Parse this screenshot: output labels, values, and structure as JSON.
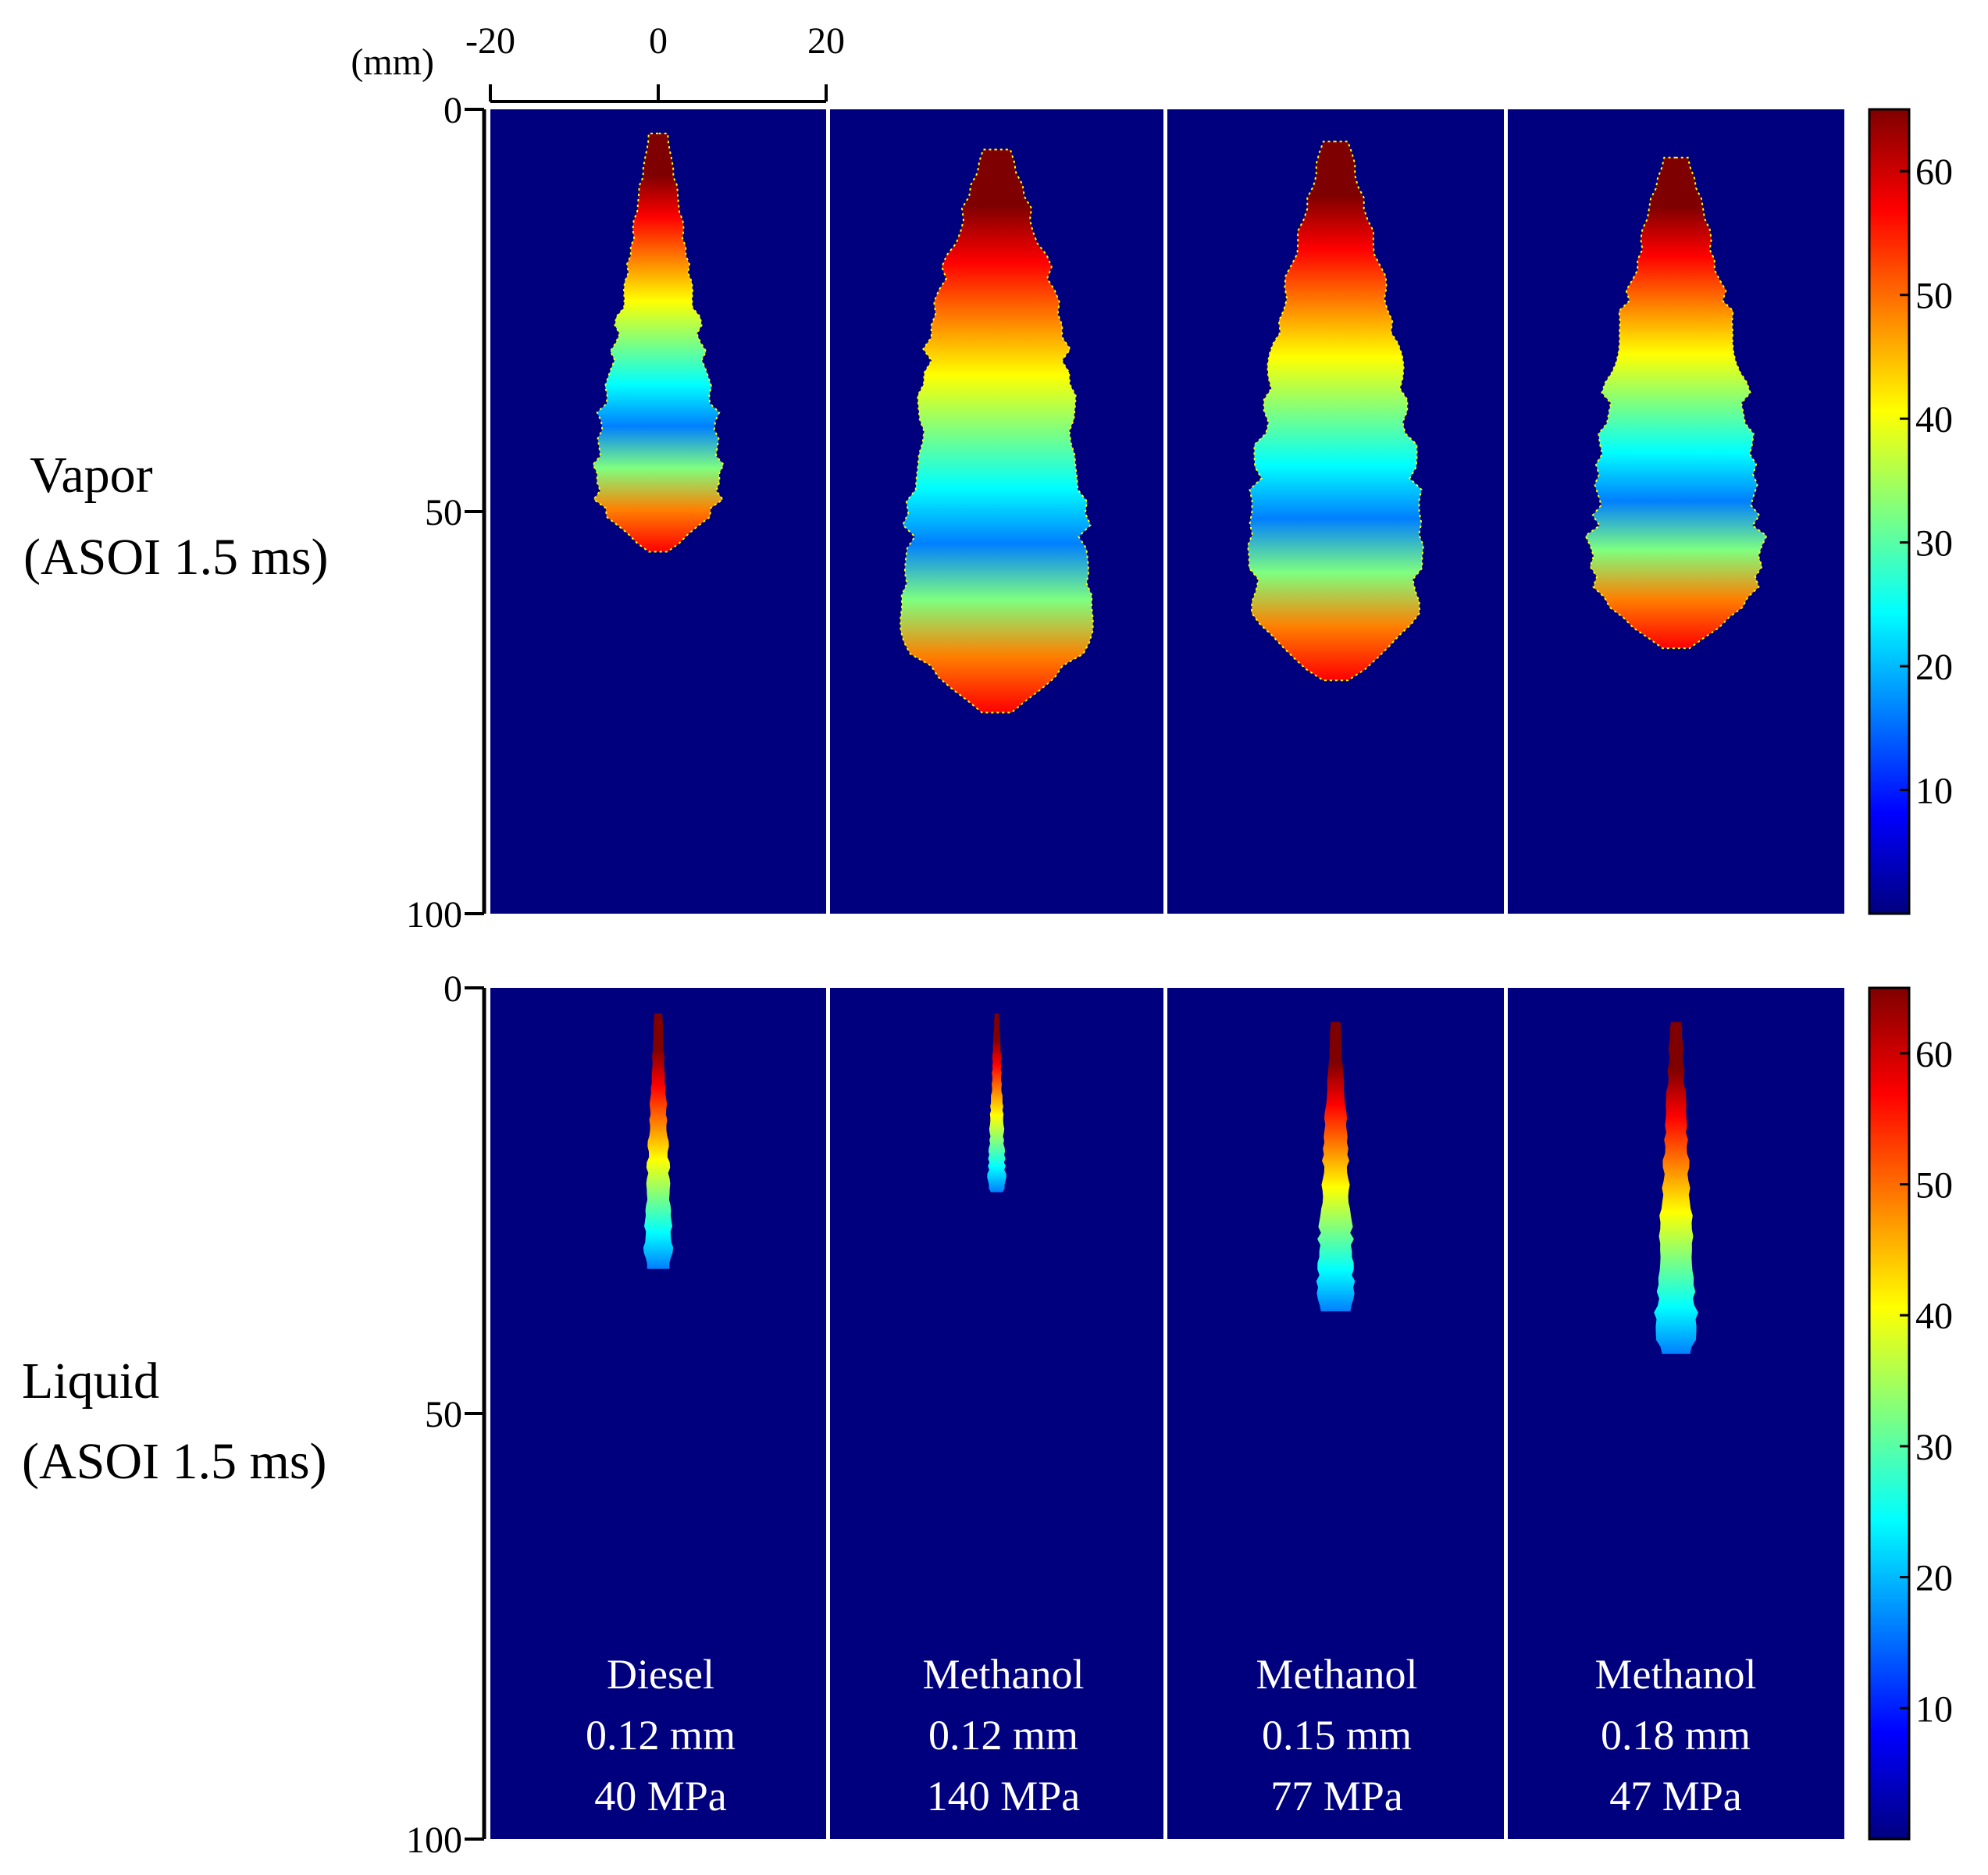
{
  "chart_data": {
    "type": "heatmap",
    "title": "",
    "x_axis": {
      "unit_label": "(mm)",
      "range": [
        -20,
        20
      ],
      "ticks": [
        -20,
        0,
        20
      ]
    },
    "y_axis": {
      "range": [
        0,
        100
      ],
      "ticks": [
        0,
        50,
        100
      ]
    },
    "colorbar": {
      "range": [
        0,
        65
      ],
      "ticks": [
        10,
        20,
        30,
        40,
        50,
        60
      ],
      "colormap": [
        "#00007f",
        "#0000ff",
        "#007fff",
        "#00ffff",
        "#7fff7f",
        "#ffff00",
        "#ff7f00",
        "#ff0000",
        "#7f0000"
      ]
    },
    "background_color": "#00007f",
    "rows": [
      {
        "label_line1": "Vapor",
        "label_line2": "(ASOI 1.5 ms)",
        "phase": "vapor",
        "penetration_mm": [
          55,
          75,
          71,
          67
        ],
        "tip_start_mm": [
          3,
          5,
          4,
          6
        ],
        "core_end_mm": [
          30,
          25,
          27,
          28
        ],
        "max_half_width_mm": [
          7.5,
          11,
          10,
          10
        ]
      },
      {
        "label_line1": "Liquid",
        "label_line2": "(ASOI 1.5 ms)",
        "phase": "liquid",
        "penetration_mm": [
          33,
          24,
          38,
          43
        ],
        "tip_start_mm": [
          3,
          3,
          4,
          4
        ],
        "core_end_mm": [
          22,
          22,
          30,
          25
        ],
        "max_half_width_mm": [
          1.8,
          1.1,
          2.4,
          2.6
        ]
      }
    ],
    "cases": [
      {
        "fuel": "Diesel",
        "nozzle": "0.12 mm",
        "pressure": "40 MPa"
      },
      {
        "fuel": "Methanol",
        "nozzle": "0.12 mm",
        "pressure": "140 MPa"
      },
      {
        "fuel": "Methanol",
        "nozzle": "0.15 mm",
        "pressure": "77 MPa"
      },
      {
        "fuel": "Methanol",
        "nozzle": "0.18 mm",
        "pressure": "47 MPa"
      }
    ]
  }
}
